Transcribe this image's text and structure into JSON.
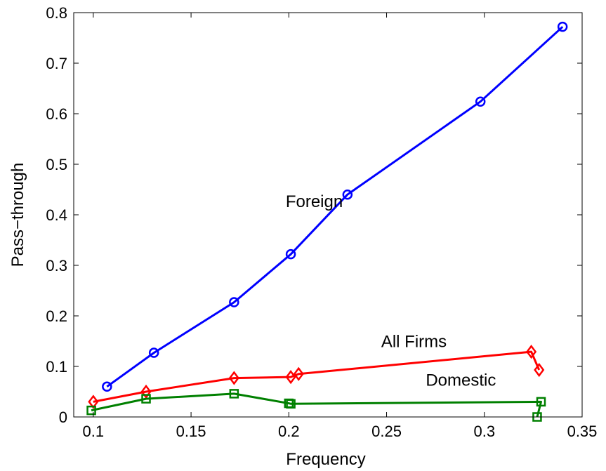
{
  "chart_data": {
    "type": "line",
    "title": "",
    "xlabel": "Frequency",
    "ylabel": "Pass−through",
    "xlim": [
      0.09,
      0.35
    ],
    "ylim": [
      0,
      0.8
    ],
    "xticks": [
      0.1,
      0.15,
      0.2,
      0.25,
      0.3,
      0.35
    ],
    "xtick_labels": [
      "0.1",
      "0.15",
      "0.2",
      "0.25",
      "0.3",
      "0.35"
    ],
    "yticks": [
      0,
      0.1,
      0.2,
      0.3,
      0.4,
      0.5,
      0.6,
      0.7,
      0.8
    ],
    "ytick_labels": [
      "0",
      "0.1",
      "0.2",
      "0.3",
      "0.4",
      "0.5",
      "0.6",
      "0.7",
      "0.8"
    ],
    "grid": false,
    "legend": "none",
    "series": [
      {
        "name": "Foreign",
        "color": "#0000ff",
        "marker": "circle",
        "x": [
          0.107,
          0.131,
          0.172,
          0.201,
          0.23,
          0.298,
          0.34
        ],
        "y": [
          0.06,
          0.127,
          0.227,
          0.322,
          0.44,
          0.624,
          0.772
        ]
      },
      {
        "name": "All Firms",
        "color": "#ff0000",
        "marker": "diamond",
        "x": [
          0.1,
          0.127,
          0.172,
          0.201,
          0.205,
          0.324,
          0.328
        ],
        "y": [
          0.03,
          0.05,
          0.077,
          0.079,
          0.085,
          0.129,
          0.093
        ]
      },
      {
        "name": "Domestic",
        "color": "#008000",
        "marker": "square",
        "x": [
          0.099,
          0.127,
          0.172,
          0.2,
          0.201,
          0.329,
          0.327
        ],
        "y": [
          0.013,
          0.036,
          0.046,
          0.027,
          0.026,
          0.03,
          0.0
        ]
      }
    ],
    "annotations": [
      {
        "text": "Foreign",
        "x": 0.213,
        "y": 0.415
      },
      {
        "text": "All Firms",
        "x": 0.264,
        "y": 0.138
      },
      {
        "text": "Domestic",
        "x": 0.288,
        "y": 0.062
      }
    ]
  }
}
